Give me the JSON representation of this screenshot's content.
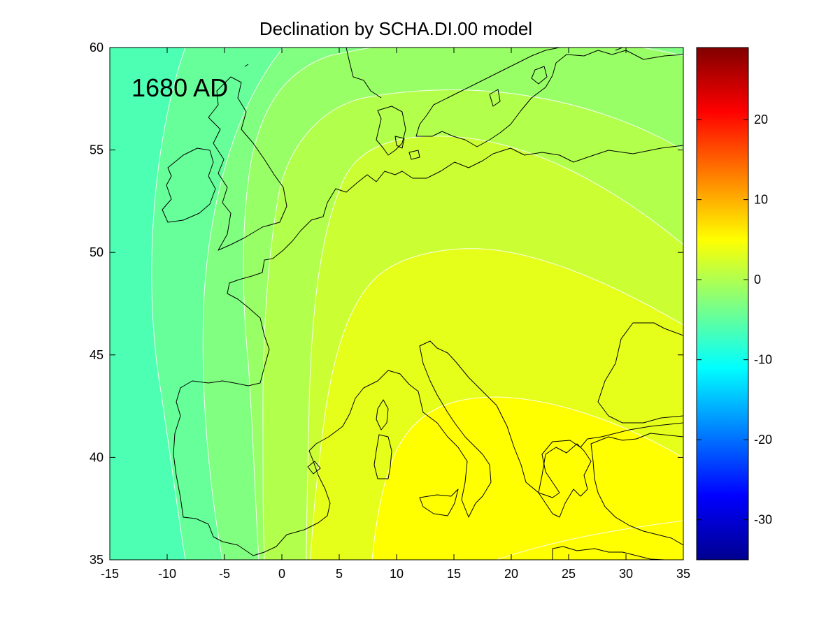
{
  "figure": {
    "title": "Declination by SCHA.DI.00 model",
    "annotation": "1680 AD"
  },
  "map": {
    "x_range": [
      -15,
      35
    ],
    "y_range": [
      35,
      60
    ],
    "x_ticks": [
      "-15",
      "-10",
      "-5",
      "0",
      "5",
      "10",
      "15",
      "20",
      "25",
      "30",
      "35"
    ],
    "y_ticks": [
      "35",
      "40",
      "45",
      "50",
      "55",
      "60"
    ],
    "fill_bands": [
      "#4cffb2",
      "#66ff99",
      "#80ff80",
      "#99ff66",
      "#b2ff4c",
      "#ccff33",
      "#e5ff1a",
      "#ffff00"
    ],
    "coastline_color": "#000000",
    "contour_line_color": "#ffffff"
  },
  "colorbar": {
    "range": [
      -35,
      29
    ],
    "tick_values": [
      20,
      10,
      0,
      -10,
      -20,
      -30
    ],
    "tick_labels": [
      "20",
      "10",
      "0",
      "-10",
      "-20",
      "-30"
    ],
    "colormap": "jet"
  }
}
